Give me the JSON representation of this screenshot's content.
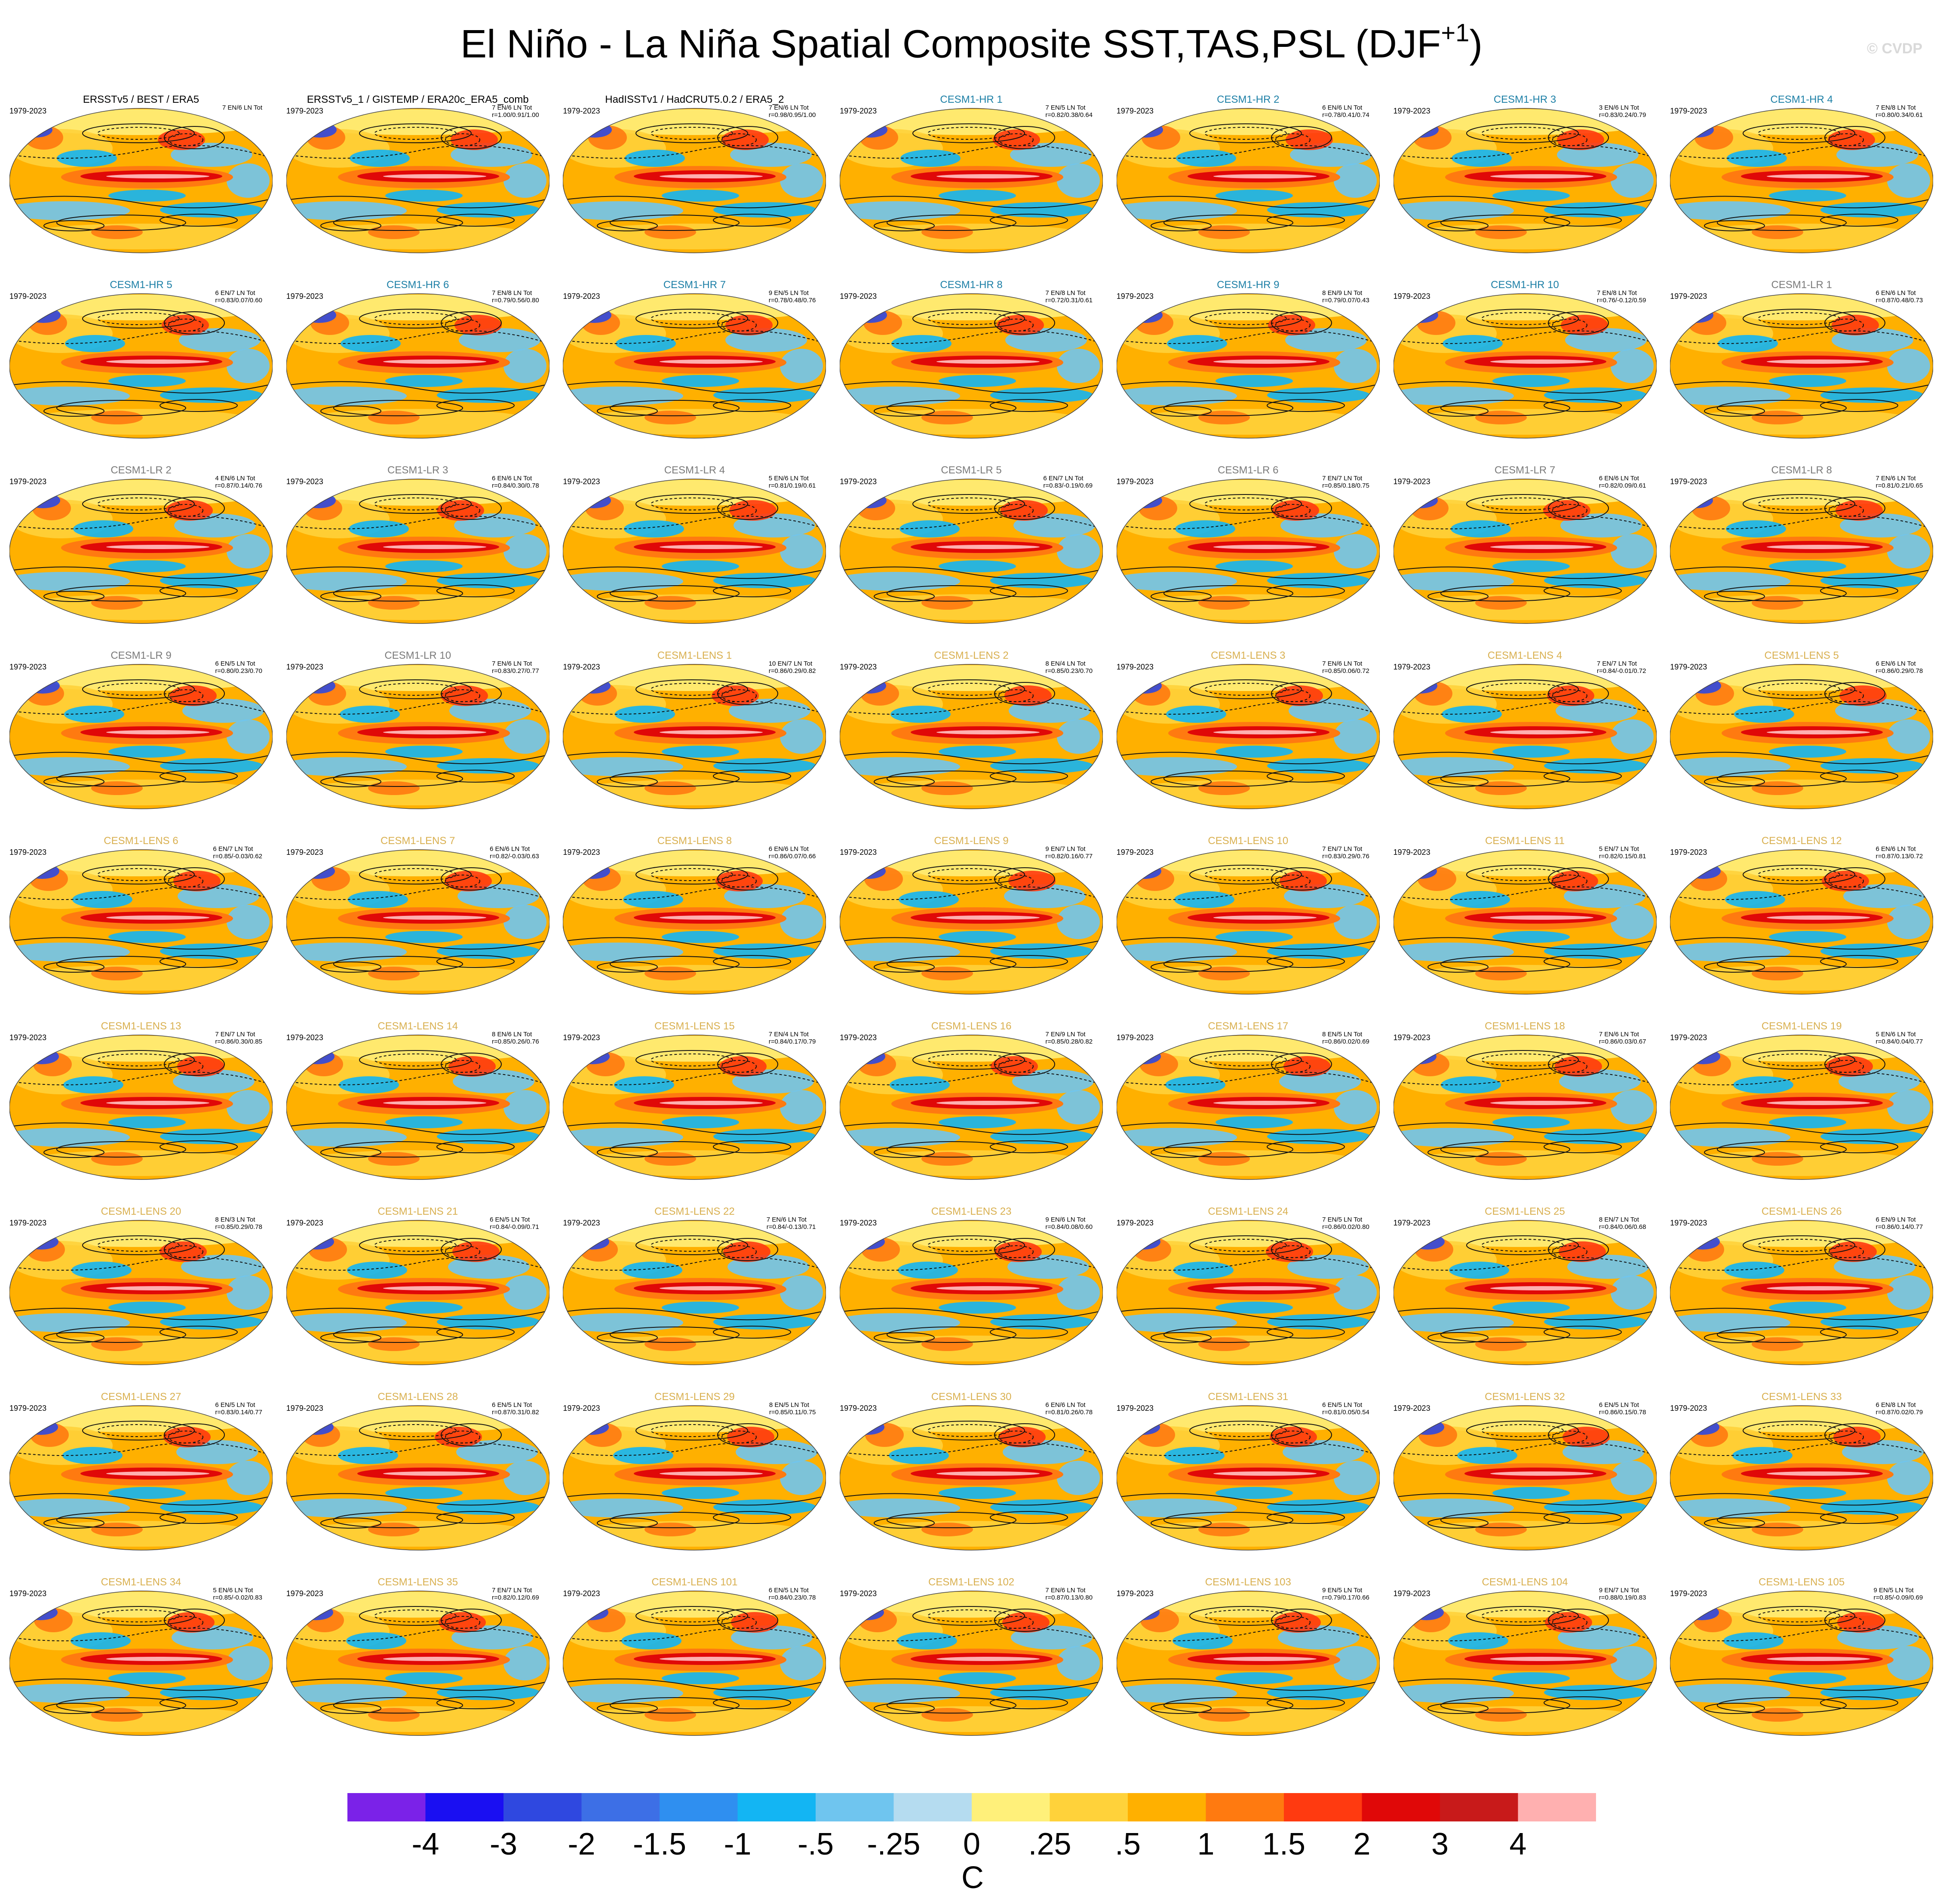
{
  "title": {
    "main": "El Niño - La Niña Spatial Composite SST,TAS,PSL (DJF",
    "sup": "+1",
    "close": ")"
  },
  "watermark": "© CVDP",
  "period": "1979-2023",
  "panels": [
    {
      "title": "ERSSTv5 / BEST / ERA5",
      "group": "obs",
      "counts": "7 EN/6 LN Tot",
      "stats": ""
    },
    {
      "title": "ERSSTv5_1 / GISTEMP / ERA20c_ERA5_comb",
      "group": "obs",
      "counts": "7 EN/6 LN Tot",
      "stats": "r=1.00/0.91/1.00"
    },
    {
      "title": "HadISSTv1 / HadCRUT5.0.2 / ERA5_2",
      "group": "obs",
      "counts": "7 EN/6 LN Tot",
      "stats": "r=0.98/0.95/1.00"
    },
    {
      "title": "CESM1-HR 1",
      "group": "hr",
      "counts": "7 EN/5 LN Tot",
      "stats": "r=0.82/0.38/0.64"
    },
    {
      "title": "CESM1-HR 2",
      "group": "hr",
      "counts": "6 EN/6 LN Tot",
      "stats": "r=0.78/0.41/0.74"
    },
    {
      "title": "CESM1-HR 3",
      "group": "hr",
      "counts": "3 EN/6 LN Tot",
      "stats": "r=0.83/0.24/0.79"
    },
    {
      "title": "CESM1-HR 4",
      "group": "hr",
      "counts": "7 EN/8 LN Tot",
      "stats": "r=0.80/0.34/0.61"
    },
    {
      "title": "CESM1-HR 5",
      "group": "hr",
      "counts": "6 EN/7 LN Tot",
      "stats": "r=0.83/0.07/0.60"
    },
    {
      "title": "CESM1-HR 6",
      "group": "hr",
      "counts": "7 EN/8 LN Tot",
      "stats": "r=0.79/0.56/0.80"
    },
    {
      "title": "CESM1-HR 7",
      "group": "hr",
      "counts": "9 EN/5 LN Tot",
      "stats": "r=0.78/0.48/0.76"
    },
    {
      "title": "CESM1-HR 8",
      "group": "hr",
      "counts": "7 EN/8 LN Tot",
      "stats": "r=0.72/0.31/0.61"
    },
    {
      "title": "CESM1-HR 9",
      "group": "hr",
      "counts": "8 EN/9 LN Tot",
      "stats": "r=0.79/0.07/0.43"
    },
    {
      "title": "CESM1-HR 10",
      "group": "hr",
      "counts": "7 EN/8 LN Tot",
      "stats": "r=0.76/-0.12/0.59"
    },
    {
      "title": "CESM1-LR 1",
      "group": "lr",
      "counts": "6 EN/6 LN Tot",
      "stats": "r=0.87/0.48/0.73"
    },
    {
      "title": "CESM1-LR 2",
      "group": "lr",
      "counts": "4 EN/6 LN Tot",
      "stats": "r=0.87/0.14/0.76"
    },
    {
      "title": "CESM1-LR 3",
      "group": "lr",
      "counts": "6 EN/6 LN Tot",
      "stats": "r=0.84/0.30/0.78"
    },
    {
      "title": "CESM1-LR 4",
      "group": "lr",
      "counts": "5 EN/6 LN Tot",
      "stats": "r=0.81/0.19/0.61"
    },
    {
      "title": "CESM1-LR 5",
      "group": "lr",
      "counts": "6 EN/7 LN Tot",
      "stats": "r=0.83/-0.19/0.69"
    },
    {
      "title": "CESM1-LR 6",
      "group": "lr",
      "counts": "7 EN/7 LN Tot",
      "stats": "r=0.85/0.18/0.75"
    },
    {
      "title": "CESM1-LR 7",
      "group": "lr",
      "counts": "6 EN/6 LN Tot",
      "stats": "r=0.82/0.09/0.61"
    },
    {
      "title": "CESM1-LR 8",
      "group": "lr",
      "counts": "7 EN/6 LN Tot",
      "stats": "r=0.81/0.21/0.65"
    },
    {
      "title": "CESM1-LR 9",
      "group": "lr",
      "counts": "6 EN/5 LN Tot",
      "stats": "r=0.80/0.23/0.70"
    },
    {
      "title": "CESM1-LR 10",
      "group": "lr",
      "counts": "7 EN/6 LN Tot",
      "stats": "r=0.83/0.27/0.77"
    },
    {
      "title": "CESM1-LENS 1",
      "group": "lens",
      "counts": "10 EN/7 LN Tot",
      "stats": "r=0.86/0.29/0.82"
    },
    {
      "title": "CESM1-LENS 2",
      "group": "lens",
      "counts": "8 EN/4 LN Tot",
      "stats": "r=0.85/0.23/0.70"
    },
    {
      "title": "CESM1-LENS 3",
      "group": "lens",
      "counts": "7 EN/6 LN Tot",
      "stats": "r=0.85/0.06/0.72"
    },
    {
      "title": "CESM1-LENS 4",
      "group": "lens",
      "counts": "7 EN/7 LN Tot",
      "stats": "r=0.84/-0.01/0.72"
    },
    {
      "title": "CESM1-LENS 5",
      "group": "lens",
      "counts": "6 EN/6 LN Tot",
      "stats": "r=0.86/0.29/0.78"
    },
    {
      "title": "CESM1-LENS 6",
      "group": "lens",
      "counts": "6 EN/7 LN Tot",
      "stats": "r=0.85/-0.03/0.62"
    },
    {
      "title": "CESM1-LENS 7",
      "group": "lens",
      "counts": "6 EN/6 LN Tot",
      "stats": "r=0.82/-0.03/0.63"
    },
    {
      "title": "CESM1-LENS 8",
      "group": "lens",
      "counts": "6 EN/6 LN Tot",
      "stats": "r=0.86/0.07/0.66"
    },
    {
      "title": "CESM1-LENS 9",
      "group": "lens",
      "counts": "9 EN/7 LN Tot",
      "stats": "r=0.82/0.16/0.77"
    },
    {
      "title": "CESM1-LENS 10",
      "group": "lens",
      "counts": "7 EN/7 LN Tot",
      "stats": "r=0.83/0.29/0.76"
    },
    {
      "title": "CESM1-LENS 11",
      "group": "lens",
      "counts": "5 EN/7 LN Tot",
      "stats": "r=0.82/0.15/0.81"
    },
    {
      "title": "CESM1-LENS 12",
      "group": "lens",
      "counts": "6 EN/6 LN Tot",
      "stats": "r=0.87/0.13/0.72"
    },
    {
      "title": "CESM1-LENS 13",
      "group": "lens",
      "counts": "7 EN/7 LN Tot",
      "stats": "r=0.86/0.30/0.85"
    },
    {
      "title": "CESM1-LENS 14",
      "group": "lens",
      "counts": "8 EN/6 LN Tot",
      "stats": "r=0.85/0.26/0.76"
    },
    {
      "title": "CESM1-LENS 15",
      "group": "lens",
      "counts": "7 EN/4 LN Tot",
      "stats": "r=0.84/0.17/0.79"
    },
    {
      "title": "CESM1-LENS 16",
      "group": "lens",
      "counts": "7 EN/9 LN Tot",
      "stats": "r=0.85/0.28/0.82"
    },
    {
      "title": "CESM1-LENS 17",
      "group": "lens",
      "counts": "8 EN/5 LN Tot",
      "stats": "r=0.86/0.02/0.69"
    },
    {
      "title": "CESM1-LENS 18",
      "group": "lens",
      "counts": "7 EN/6 LN Tot",
      "stats": "r=0.86/0.03/0.67"
    },
    {
      "title": "CESM1-LENS 19",
      "group": "lens",
      "counts": "5 EN/6 LN Tot",
      "stats": "r=0.84/0.04/0.77"
    },
    {
      "title": "CESM1-LENS 20",
      "group": "lens",
      "counts": "8 EN/3 LN Tot",
      "stats": "r=0.85/0.29/0.78"
    },
    {
      "title": "CESM1-LENS 21",
      "group": "lens",
      "counts": "6 EN/5 LN Tot",
      "stats": "r=0.84/-0.09/0.71"
    },
    {
      "title": "CESM1-LENS 22",
      "group": "lens",
      "counts": "7 EN/6 LN Tot",
      "stats": "r=0.84/-0.13/0.71"
    },
    {
      "title": "CESM1-LENS 23",
      "group": "lens",
      "counts": "9 EN/6 LN Tot",
      "stats": "r=0.84/0.08/0.60"
    },
    {
      "title": "CESM1-LENS 24",
      "group": "lens",
      "counts": "7 EN/5 LN Tot",
      "stats": "r=0.86/0.02/0.80"
    },
    {
      "title": "CESM1-LENS 25",
      "group": "lens",
      "counts": "8 EN/7 LN Tot",
      "stats": "r=0.84/0.06/0.68"
    },
    {
      "title": "CESM1-LENS 26",
      "group": "lens",
      "counts": "6 EN/9 LN Tot",
      "stats": "r=0.86/0.14/0.77"
    },
    {
      "title": "CESM1-LENS 27",
      "group": "lens",
      "counts": "6 EN/5 LN Tot",
      "stats": "r=0.83/0.14/0.77"
    },
    {
      "title": "CESM1-LENS 28",
      "group": "lens",
      "counts": "6 EN/5 LN Tot",
      "stats": "r=0.87/0.31/0.82"
    },
    {
      "title": "CESM1-LENS 29",
      "group": "lens",
      "counts": "8 EN/5 LN Tot",
      "stats": "r=0.85/0.11/0.75"
    },
    {
      "title": "CESM1-LENS 30",
      "group": "lens",
      "counts": "6 EN/6 LN Tot",
      "stats": "r=0.81/0.26/0.78"
    },
    {
      "title": "CESM1-LENS 31",
      "group": "lens",
      "counts": "6 EN/5 LN Tot",
      "stats": "r=0.81/0.05/0.54"
    },
    {
      "title": "CESM1-LENS 32",
      "group": "lens",
      "counts": "6 EN/5 LN Tot",
      "stats": "r=0.86/0.15/0.78"
    },
    {
      "title": "CESM1-LENS 33",
      "group": "lens",
      "counts": "6 EN/8 LN Tot",
      "stats": "r=0.87/0.02/0.79"
    },
    {
      "title": "CESM1-LENS 34",
      "group": "lens",
      "counts": "5 EN/6 LN Tot",
      "stats": "r=0.85/-0.02/0.83"
    },
    {
      "title": "CESM1-LENS 35",
      "group": "lens",
      "counts": "7 EN/7 LN Tot",
      "stats": "r=0.82/0.12/0.69"
    },
    {
      "title": "CESM1-LENS 101",
      "group": "lens",
      "counts": "6 EN/5 LN Tot",
      "stats": "r=0.84/0.23/0.78"
    },
    {
      "title": "CESM1-LENS 102",
      "group": "lens",
      "counts": "7 EN/6 LN Tot",
      "stats": "r=0.87/0.13/0.80"
    },
    {
      "title": "CESM1-LENS 103",
      "group": "lens",
      "counts": "9 EN/5 LN Tot",
      "stats": "r=0.79/0.17/0.66"
    },
    {
      "title": "CESM1-LENS 104",
      "group": "lens",
      "counts": "9 EN/7 LN Tot",
      "stats": "r=0.88/0.19/0.83"
    },
    {
      "title": "CESM1-LENS 105",
      "group": "lens",
      "counts": "9 EN/5 LN Tot",
      "stats": "r=0.85/-0.09/0.69"
    }
  ],
  "group_colors": {
    "obs": "#000000",
    "hr": "#1c7fa6",
    "lr": "#7a7a7a",
    "lens": "#d9b050"
  },
  "chart_data": {
    "type": "heatmap",
    "grid": {
      "rows": 9,
      "cols": 7
    },
    "colorbar": {
      "unit": "C",
      "labels": [
        "-4",
        "-3",
        "-2",
        "-1.5",
        "-1",
        "-.5",
        "-.25",
        "0",
        ".25",
        ".5",
        "1",
        "1.5",
        "2",
        "3",
        "4"
      ],
      "colors": [
        "#7b22e8",
        "#1a0ff2",
        "#2f48e0",
        "#3d6fe6",
        "#2f8ff0",
        "#13b5f3",
        "#6fc5ef",
        "#b5dcf0",
        "#fff07a",
        "#ffd23a",
        "#ffb000",
        "#ff7a10",
        "#ff3a10",
        "#e00808",
        "#c81a1a",
        "#ffb0b0"
      ]
    }
  }
}
